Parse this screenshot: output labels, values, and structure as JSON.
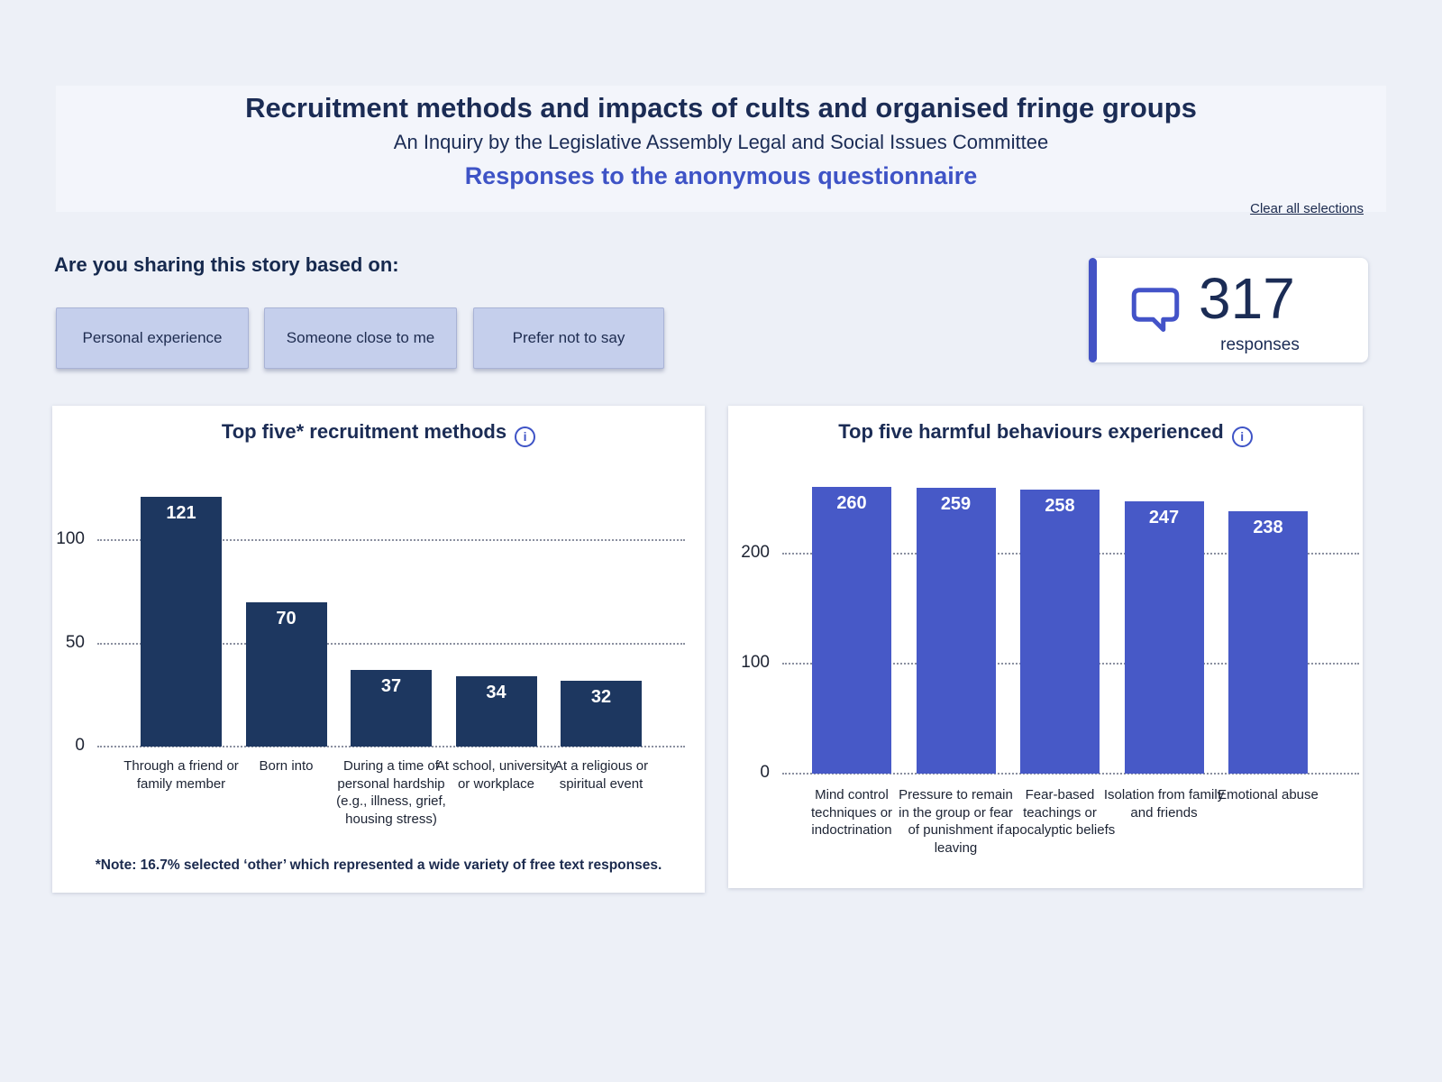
{
  "header": {
    "title": "Recruitment methods and impacts of cults and organised fringe groups",
    "subtitle": "An Inquiry by the Legislative Assembly Legal and Social Issues Committee",
    "section_title": "Responses to the anonymous questionnaire",
    "clear_link": "Clear all selections"
  },
  "filters": {
    "question": "Are you sharing this story based on:",
    "options": [
      {
        "label": "Personal experience"
      },
      {
        "label": "Someone close to me"
      },
      {
        "label": "Prefer not to say"
      }
    ]
  },
  "kpi": {
    "value": "317",
    "label": "responses",
    "icon": "speech-bubble-icon",
    "accent_color": "#4353c5",
    "icon_color": "#4353c8"
  },
  "colors": {
    "page_background": "#edf0f7",
    "card_background": "#ffffff",
    "navy_text": "#1b2c55",
    "indigo_accent": "#3e53c6",
    "button_fill": "#c5cfec",
    "gridline": "#8b90a0"
  },
  "chart_data": [
    {
      "type": "bar",
      "title": "Top five* recruitment methods",
      "info_icon": "info-icon",
      "categories": [
        "Through a friend or family member",
        "Born into",
        "During a time of personal hardship (e.g., illness, grief, housing stress)",
        "At school, university or workplace",
        "At a religious or spiritual event"
      ],
      "values": [
        121,
        70,
        37,
        34,
        32
      ],
      "yticks": [
        0,
        50,
        100
      ],
      "ylim": [
        0,
        125
      ],
      "bar_color": "#1d3760",
      "value_label_color": "#ffffff",
      "grid": "horizontal-dotted",
      "legend": "none",
      "note": "*Note: 16.7% selected ‘other’ which represented a wide variety of free text responses."
    },
    {
      "type": "bar",
      "title": "Top five harmful behaviours experienced",
      "info_icon": "info-icon",
      "categories": [
        "Mind control techniques or indoctrination",
        "Pressure to remain in the group or fear of punishment if leaving",
        "Fear-based teachings or apocalyptic beliefs",
        "Isolation from family and friends",
        "Emotional abuse"
      ],
      "values": [
        260,
        259,
        258,
        247,
        238
      ],
      "yticks": [
        0,
        100,
        200
      ],
      "ylim": [
        0,
        270
      ],
      "bar_color": "#4759c7",
      "value_label_color": "#ffffff",
      "grid": "horizontal-dotted",
      "legend": "none"
    }
  ]
}
